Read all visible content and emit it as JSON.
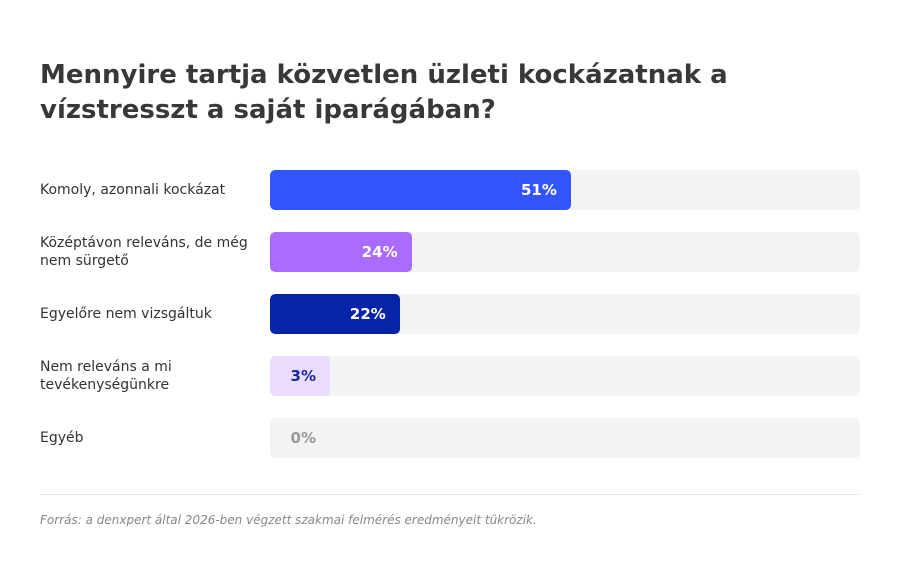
{
  "chart_data": {
    "type": "bar",
    "orientation": "horizontal",
    "title": "Mennyire tartja közvetlen üzleti kockázatnak a vízstresszt a saját iparágában?",
    "categories": [
      "Komoly, azonnali kockázat",
      "Középtávon releváns, de még nem sürgető",
      "Egyelőre nem vizsgáltuk",
      "Nem releváns a mi tevékenységünkre",
      "Egyéb"
    ],
    "values": [
      51,
      24,
      22,
      3,
      0
    ],
    "value_labels": [
      "51%",
      "24%",
      "22%",
      "3%",
      "0%"
    ],
    "xlim": [
      0,
      100
    ],
    "unit": "%",
    "grid": false,
    "bar_colors": [
      "#3355ff",
      "#a96cff",
      "#0624a8",
      "#e9dcff",
      "#f3f3f3"
    ],
    "label_colors": [
      "#ffffff",
      "#ffffff",
      "#ffffff",
      "#1a2a9c",
      "#999999"
    ],
    "track_color": "#f3f3f3"
  },
  "footer": {
    "source": "Forrás: a denxpert által 2026-ben végzett szakmai felmérés eredményeit tükrözik."
  }
}
